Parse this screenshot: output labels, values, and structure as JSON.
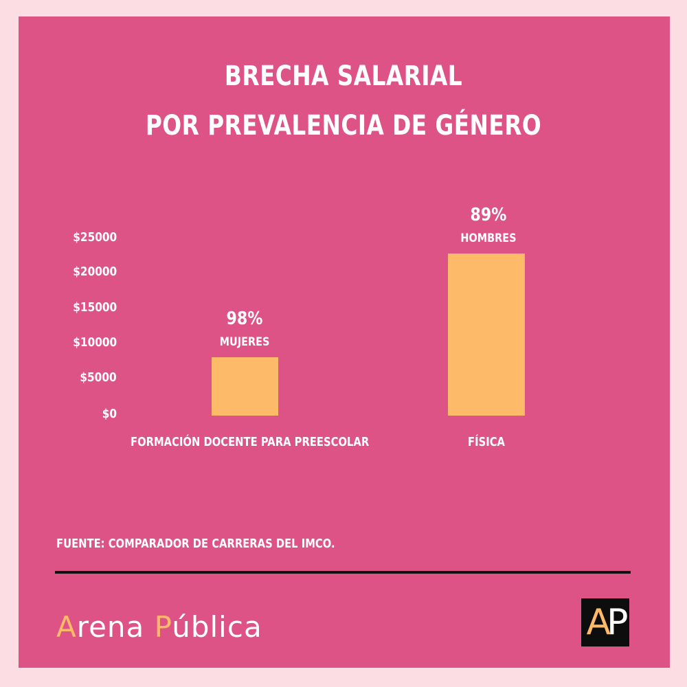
{
  "title_line1": "BRECHA SALARIAL",
  "title_line2": "POR PREVALENCIA DE GÉNERO",
  "chart_data": {
    "type": "bar",
    "categories": [
      "FORMACIÓN DOCENTE PARA PREESCOLAR",
      "FÍSICA"
    ],
    "values": [
      8300,
      23000
    ],
    "ylim": [
      0,
      25000
    ],
    "ytick_labels": [
      "$0",
      "$5000",
      "$10000",
      "$15000",
      "$20000",
      "$25000"
    ],
    "grid": false,
    "bar_annotations": [
      {
        "percent": "98%",
        "gender": "MUJERES"
      },
      {
        "percent": "89%",
        "gender": "HOMBRES"
      }
    ],
    "bar_color": "#fdba68"
  },
  "source": "FUENTE: COMPARADOR DE CARRERAS DEL IMCO.",
  "brand": {
    "first_letter": "A",
    "first_rest": "rena ",
    "second_letter": "P",
    "second_rest": "ública"
  },
  "logo": {
    "left_letter": "A",
    "right_letter": "P"
  },
  "colors": {
    "background": "#de5386",
    "outer_border": "#fddde4",
    "accent": "#fdba68",
    "text": "#ffffff",
    "rule": "#0f0f0f"
  }
}
